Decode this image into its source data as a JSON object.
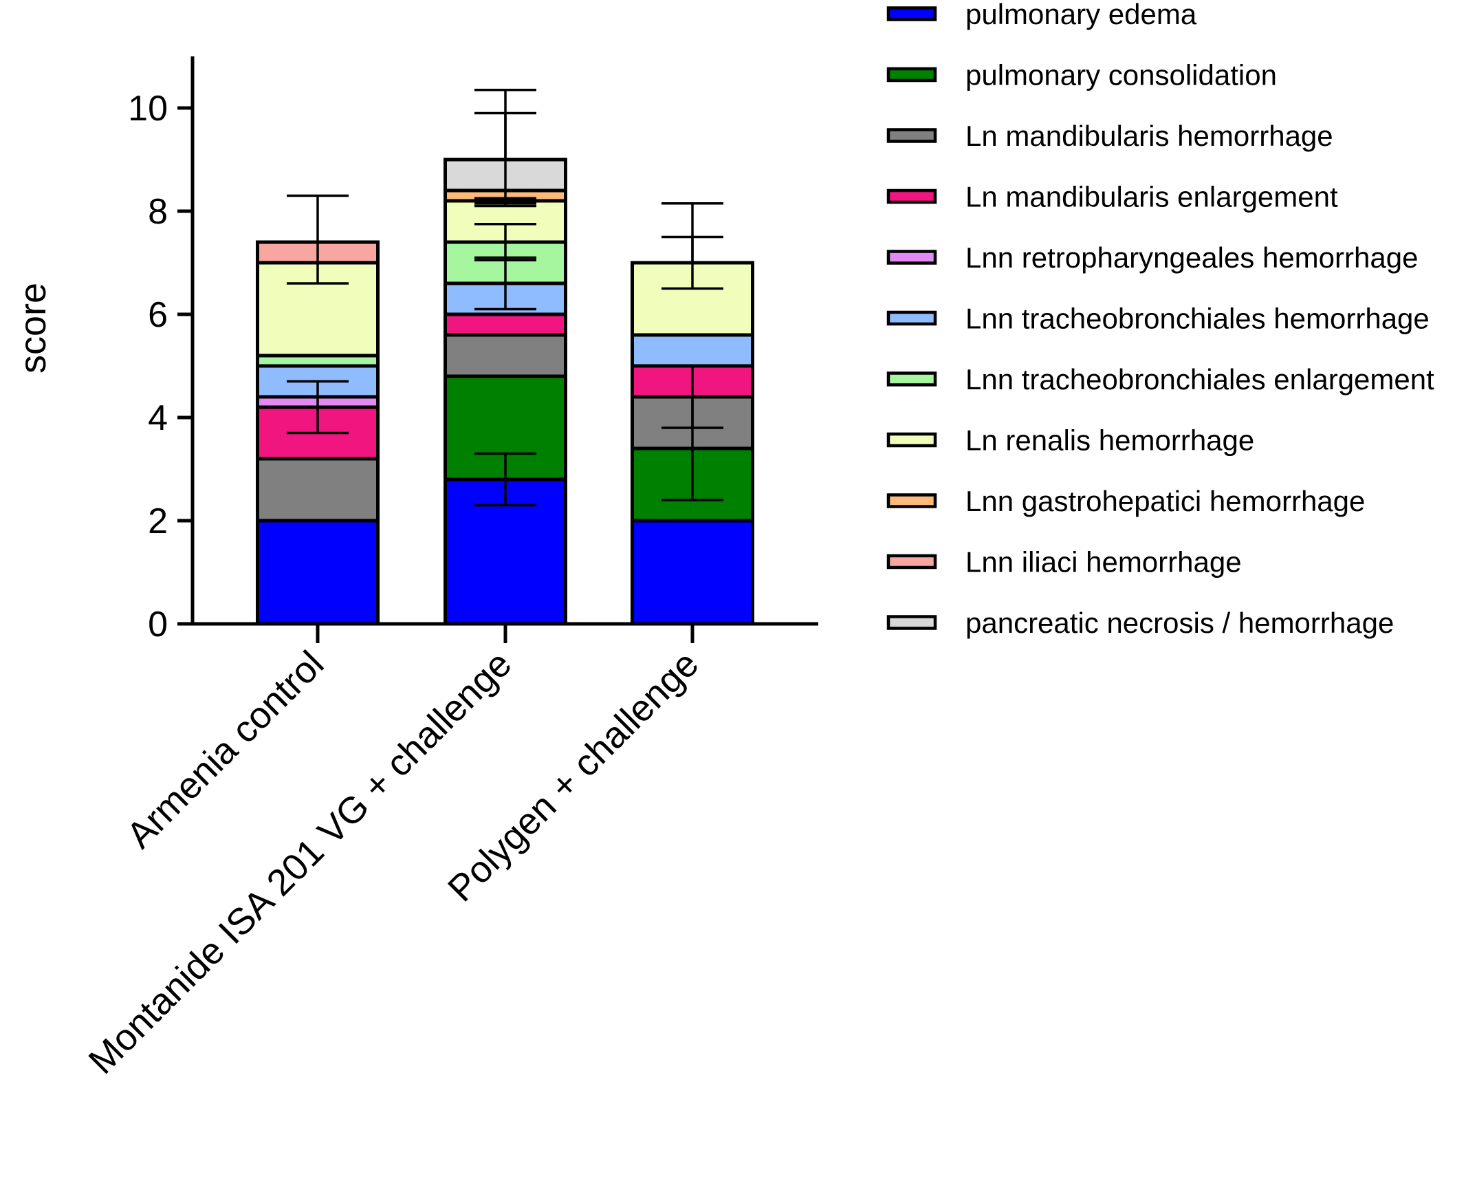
{
  "chart_data": {
    "type": "bar",
    "stacked": true,
    "ylabel": "score",
    "xlabel": "",
    "ylim": [
      0,
      11
    ],
    "yticks": [
      0,
      2,
      4,
      6,
      8,
      10
    ],
    "grid": false,
    "legend_position": "right",
    "categories": [
      "Armenia control",
      "Montanide ISA 201 VG + challenge",
      "Polygen + challenge"
    ],
    "series": [
      {
        "name": "pulmonary edema",
        "color": "#0000ff",
        "values": [
          2.0,
          2.8,
          2.0
        ],
        "errors": [
          0,
          0.5,
          0
        ]
      },
      {
        "name": "pulmonary consolidation",
        "color": "#008000",
        "values": [
          0,
          2.0,
          1.4
        ],
        "errors": [
          0,
          0,
          1.0
        ]
      },
      {
        "name": "Ln mandibularis hemorrhage",
        "color": "#808080",
        "values": [
          1.2,
          0.8,
          1.0
        ],
        "errors": [
          0,
          0,
          0.6
        ]
      },
      {
        "name": "Ln mandibularis enlargement",
        "color": "#f0157f",
        "values": [
          1.0,
          0.4,
          0.6
        ],
        "errors": [
          0.5,
          0,
          0
        ]
      },
      {
        "name": "Lnn retropharyngeales hemorrhage",
        "color": "#e18af3",
        "values": [
          0.2,
          0,
          0
        ],
        "errors": [
          0,
          0,
          0
        ]
      },
      {
        "name": "Lnn tracheobronchiales hemorrhage",
        "color": "#8fbcff",
        "values": [
          0.6,
          0.6,
          0.6
        ],
        "errors": [
          0,
          0.5,
          0
        ]
      },
      {
        "name": "Lnn tracheobronchiales enlargement",
        "color": "#a6f59f",
        "values": [
          0.2,
          0.8,
          0
        ],
        "errors": [
          0,
          0.35,
          0
        ]
      },
      {
        "name": "Ln renalis hemorrhage",
        "color": "#f1fdbb",
        "values": [
          1.8,
          0.8,
          1.4
        ],
        "errors": [
          0.4,
          0.05,
          0.5
        ]
      },
      {
        "name": "Lnn gastrohepatici hemorrhage",
        "color": "#fbb97a",
        "values": [
          0,
          0.2,
          0
        ],
        "errors": [
          0,
          0,
          0
        ]
      },
      {
        "name": "Lnn iliaci hemorrhage",
        "color": "#f8a6a0",
        "values": [
          0.4,
          0,
          0
        ],
        "errors": [
          0,
          0,
          0
        ]
      },
      {
        "name": "pancreatic necrosis / hemorrhage",
        "color": "#d9d9d9",
        "values": [
          0,
          0.6,
          0
        ],
        "errors": [
          0,
          0.9,
          0
        ]
      }
    ],
    "total_errors": [
      0.9,
      1.35,
      1.15
    ]
  }
}
